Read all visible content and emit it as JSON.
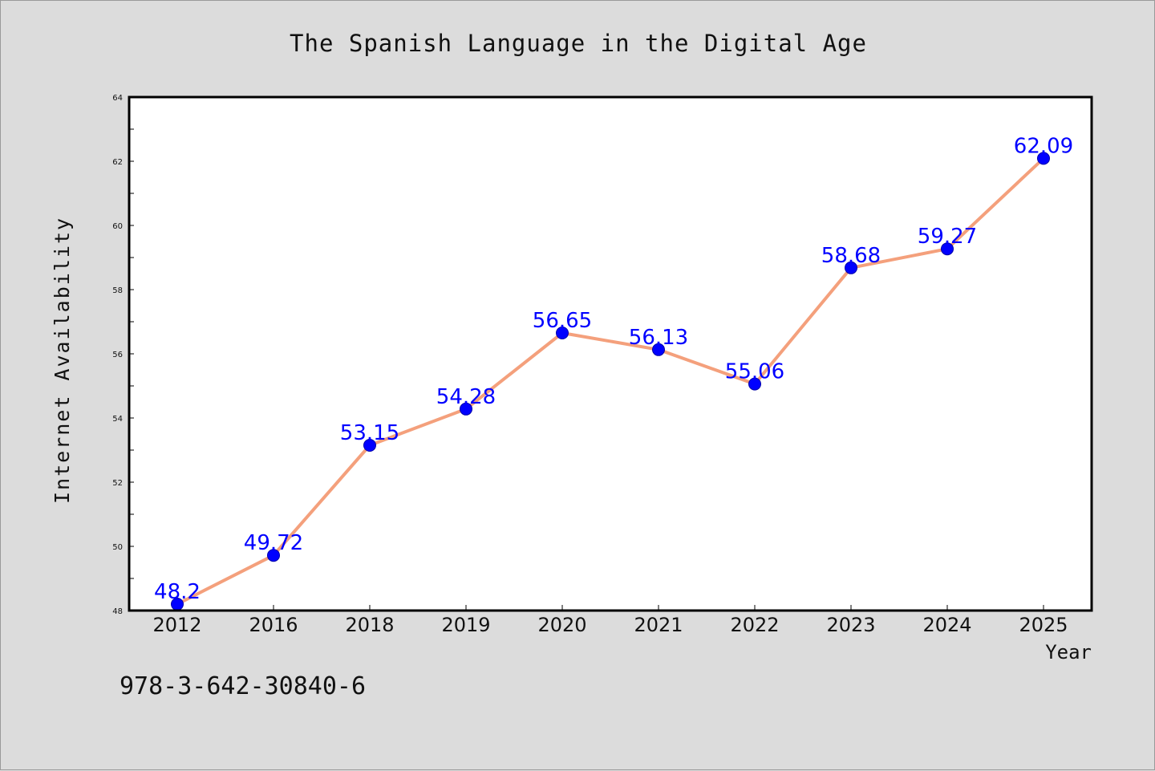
{
  "chart_data": {
    "type": "line",
    "title": "The Spanish Language in the Digital Age",
    "xlabel": "Year",
    "ylabel": "Internet Availability",
    "categories": [
      "2012",
      "2016",
      "2018",
      "2019",
      "2020",
      "2021",
      "2022",
      "2023",
      "2024",
      "2025"
    ],
    "series": [
      {
        "values": [
          48.2,
          49.72,
          53.15,
          54.28,
          56.65,
          56.13,
          55.06,
          58.68,
          59.27,
          62.09
        ],
        "data_labels": [
          "48.2",
          "49.72",
          "53.15",
          "54.28",
          "56.65",
          "56.13",
          "55.06",
          "58.68",
          "59.27",
          "62.09"
        ],
        "line_color": "#f4a07c",
        "marker_color": "#0000ff"
      }
    ],
    "ylim": [
      48,
      64
    ],
    "yticks": [
      "48",
      "50",
      "52",
      "54",
      "56",
      "58",
      "60",
      "62",
      "64"
    ],
    "grid": false,
    "legend": "none",
    "label_color": "#0000ff",
    "background_color": "#dcdcdc",
    "plot_background_color": "#ffffff"
  },
  "footer": {
    "isbn": "978-3-642-30840-6"
  }
}
